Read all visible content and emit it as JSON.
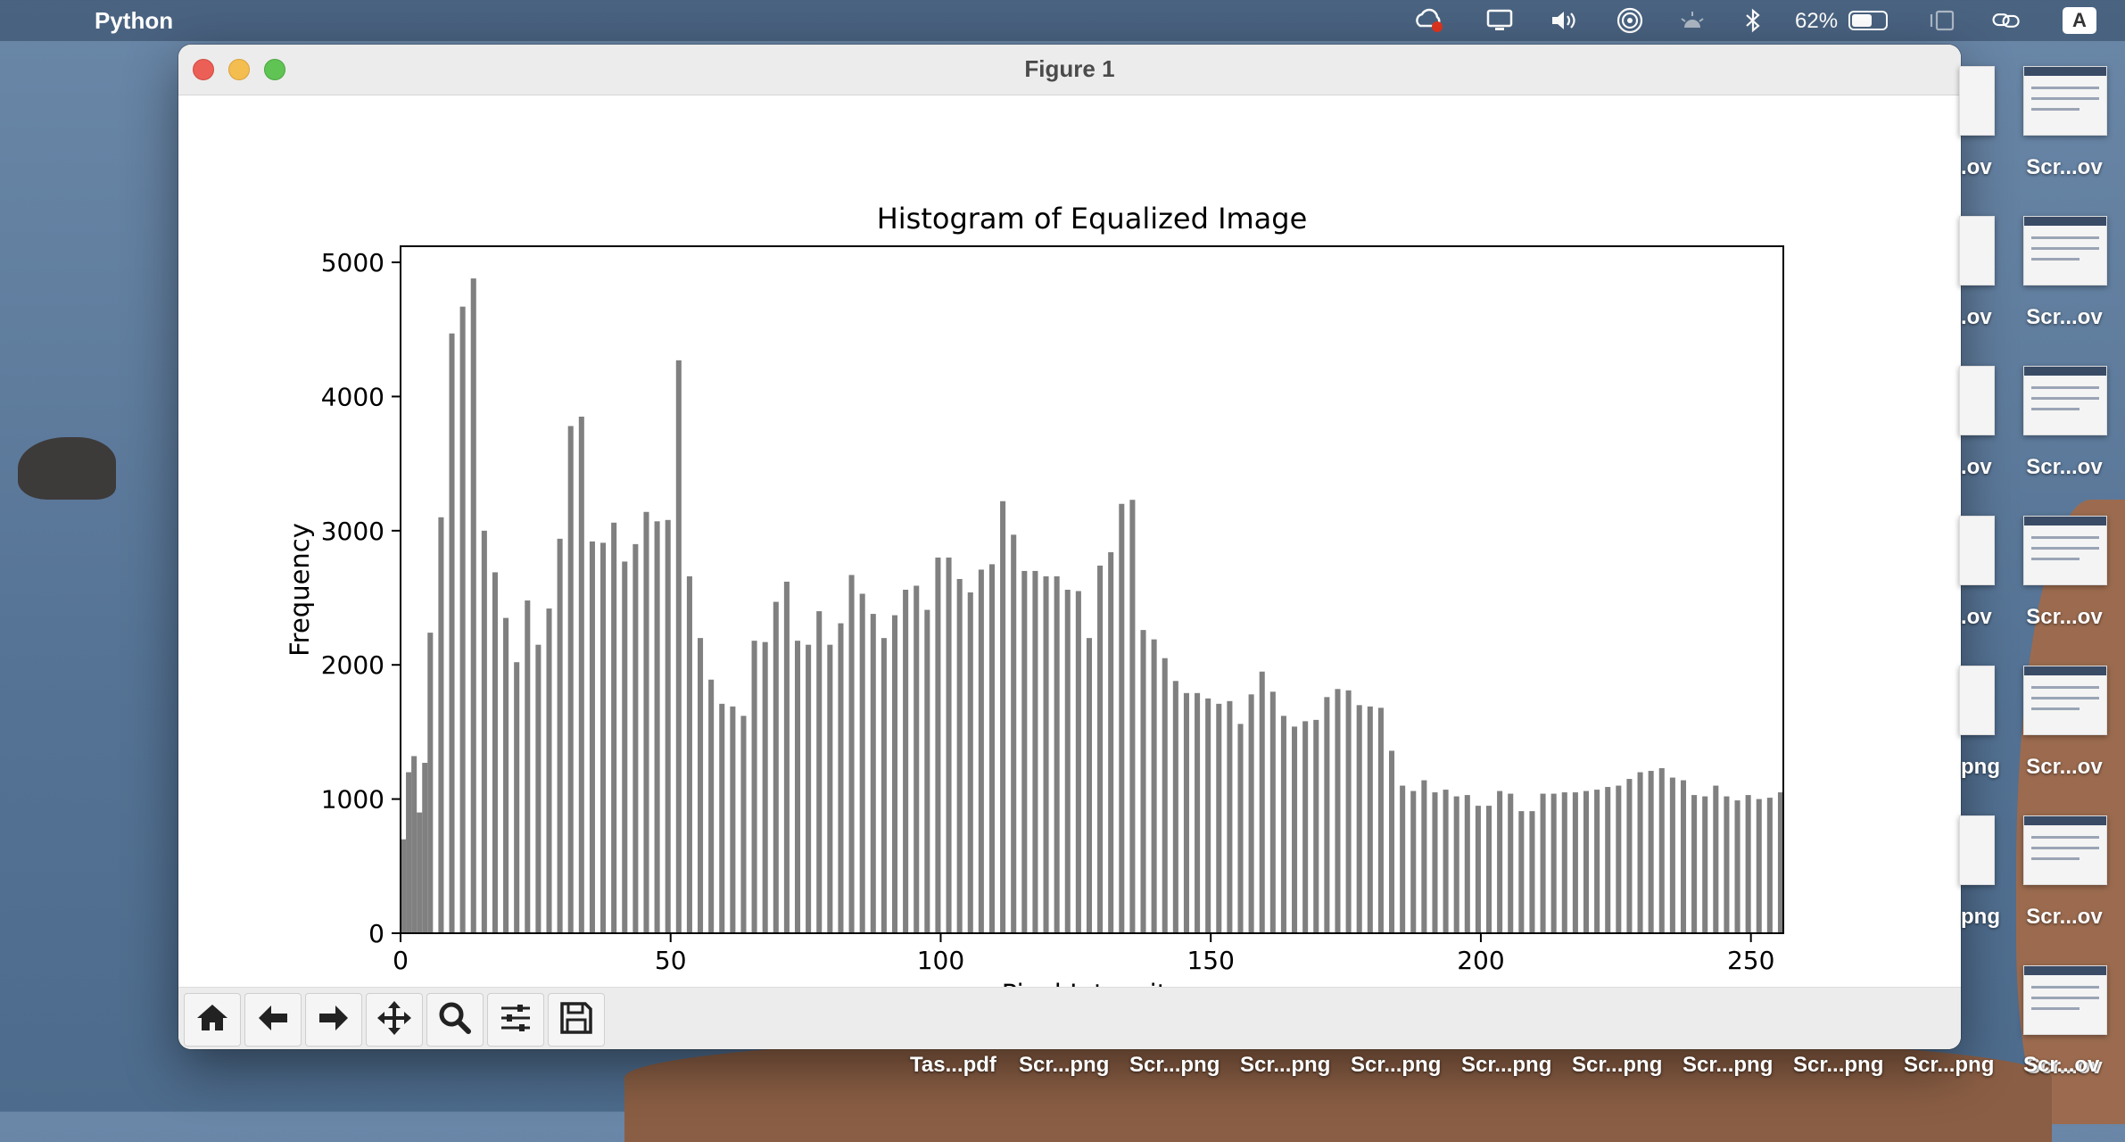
{
  "menubar": {
    "app_name": "Python",
    "battery_percent": "62%",
    "battery_level": 0.62,
    "input_source": "A"
  },
  "window": {
    "title": "Figure 1"
  },
  "desktop": {
    "right_column_labels": [
      "Scr...ov",
      "Scr...ov",
      "Scr...ov",
      "Scr...ov",
      "Scr...ov",
      "Scr...ov",
      "Scr...ov"
    ],
    "partial_column_labels": [
      ".ov",
      ".ov",
      ".ov",
      ".ov",
      "png",
      "png"
    ],
    "bottom_row_labels": [
      "Tas...pdf",
      "Scr...png",
      "Scr...png",
      "Scr...png",
      "Scr...png",
      "Scr...png",
      "Scr...png",
      "Scr...png",
      "Scr...png",
      "Scr...png",
      "Scr...ov"
    ]
  },
  "toolbar": {
    "buttons": [
      "home-icon",
      "back-arrow-icon",
      "forward-arrow-icon",
      "pan-icon",
      "zoom-icon",
      "configure-subplots-icon",
      "save-icon"
    ]
  },
  "chart_data": {
    "type": "bar",
    "title": "Histogram of Equalized Image",
    "xlabel": "Pixel Intensity",
    "ylabel": "Frequency",
    "xlim": [
      0,
      256
    ],
    "ylim": [
      0,
      5120
    ],
    "xticks": [
      0,
      50,
      100,
      150,
      200,
      250
    ],
    "yticks": [
      0,
      1000,
      2000,
      3000,
      4000,
      5000
    ],
    "bar_color": "#808080",
    "grid": false,
    "x": [
      0,
      1,
      2,
      3,
      4,
      5,
      7,
      9,
      11,
      13,
      15,
      17,
      19,
      21,
      23,
      25,
      27,
      29,
      31,
      33,
      35,
      37,
      39,
      41,
      43,
      45,
      47,
      49,
      51,
      53,
      55,
      57,
      59,
      61,
      63,
      65,
      67,
      69,
      71,
      73,
      75,
      77,
      79,
      81,
      83,
      85,
      87,
      89,
      91,
      93,
      95,
      97,
      99,
      101,
      103,
      105,
      107,
      109,
      111,
      113,
      115,
      117,
      119,
      121,
      123,
      125,
      127,
      129,
      131,
      133,
      135,
      137,
      139,
      141,
      143,
      145,
      147,
      149,
      151,
      153,
      155,
      157,
      159,
      161,
      163,
      165,
      167,
      169,
      171,
      173,
      175,
      177,
      179,
      181,
      183,
      185,
      187,
      189,
      191,
      193,
      195,
      197,
      199,
      201,
      203,
      205,
      207,
      209,
      211,
      213,
      215,
      217,
      219,
      221,
      223,
      225,
      227,
      229,
      231,
      233,
      235,
      237,
      239,
      241,
      243,
      245,
      247,
      249,
      251,
      253,
      255
    ],
    "values": [
      700,
      1200,
      1320,
      900,
      1270,
      2240,
      3100,
      4470,
      4670,
      4880,
      3000,
      2690,
      2350,
      2020,
      2480,
      2150,
      2420,
      2940,
      3780,
      3850,
      2920,
      2910,
      3060,
      2770,
      2900,
      3140,
      3070,
      3080,
      4270,
      2660,
      2200,
      1890,
      1710,
      1690,
      1620,
      2180,
      2170,
      2470,
      2620,
      2180,
      2150,
      2400,
      2150,
      2310,
      2670,
      2530,
      2380,
      2200,
      2370,
      2560,
      2590,
      2410,
      2800,
      2800,
      2640,
      2540,
      2710,
      2750,
      3220,
      2970,
      2700,
      2700,
      2660,
      2660,
      2560,
      2550,
      2200,
      2740,
      2840,
      3200,
      3230,
      2260,
      2190,
      2050,
      1880,
      1790,
      1790,
      1750,
      1710,
      1730,
      1560,
      1780,
      1950,
      1800,
      1620,
      1540,
      1580,
      1590,
      1760,
      1820,
      1810,
      1700,
      1690,
      1680,
      1360,
      1100,
      1060,
      1140,
      1050,
      1070,
      1020,
      1030,
      950,
      950,
      1060,
      1040,
      910,
      910,
      1040,
      1040,
      1050,
      1050,
      1060,
      1070,
      1090,
      1100,
      1150,
      1200,
      1210,
      1230,
      1160,
      1140,
      1030,
      1020,
      1100,
      1020,
      990,
      1030,
      1000,
      1010,
      1050
    ]
  }
}
